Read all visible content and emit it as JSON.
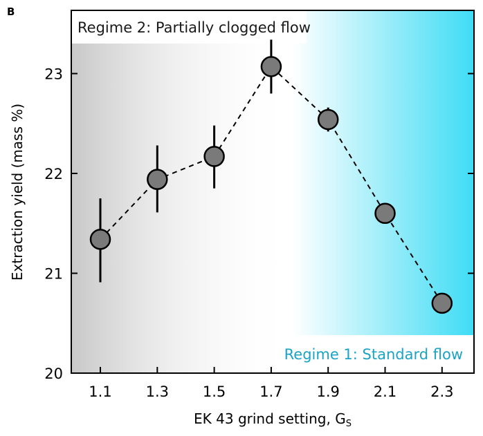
{
  "panel_label": "B",
  "chart_data": {
    "type": "line",
    "title": "",
    "xlabel": "EK 43 grind setting, G",
    "xlabel_subscript": "S",
    "ylabel": "Extraction yield (mass %)",
    "x": [
      1.1,
      1.3,
      1.5,
      1.7,
      1.9,
      2.1,
      2.3
    ],
    "x_tick_labels": [
      "1.1",
      "1.3",
      "1.5",
      "1.7",
      "1.9",
      "2.1",
      "2.3"
    ],
    "y_ticks": [
      20,
      21,
      22,
      23
    ],
    "y_tick_labels": [
      "20",
      "21",
      "22",
      "23"
    ],
    "xlim": [
      1.0,
      2.41
    ],
    "ylim": [
      20,
      23.63
    ],
    "series": [
      {
        "name": "Extraction yield",
        "values": [
          21.34,
          21.94,
          22.17,
          23.07,
          22.54,
          21.6,
          20.7
        ],
        "err_high": [
          21.75,
          22.28,
          22.48,
          23.34,
          22.66,
          21.6,
          20.7
        ],
        "err_low": [
          20.91,
          21.61,
          21.85,
          22.8,
          22.42,
          21.6,
          20.7
        ],
        "line_style": "dashed",
        "marker_color": "#7a7a7a"
      }
    ],
    "annotations": [
      {
        "text": "Regime 2: Partially clogged flow",
        "color": "#1a1a1a"
      },
      {
        "text": "Regime 1: Standard flow",
        "color": "#1ba3c6"
      }
    ],
    "colors": {
      "regime2_gray": "#c8c8c8",
      "regime1_cyan": "#3fdcf5"
    },
    "grid": false
  }
}
